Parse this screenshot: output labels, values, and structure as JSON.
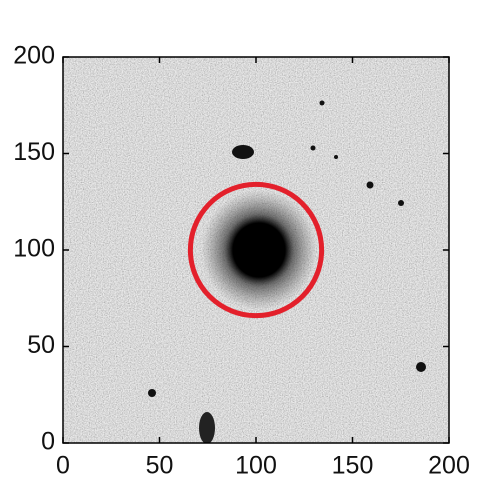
{
  "chart_data": {
    "type": "image",
    "xlim": [
      0,
      200
    ],
    "ylim": [
      0,
      200
    ],
    "xticks": [
      0,
      50,
      100,
      150,
      200
    ],
    "yticks": [
      0,
      50,
      100,
      150,
      200
    ],
    "circle": {
      "x": 100,
      "y": 100,
      "r": 34,
      "color": "#e3202b"
    }
  }
}
